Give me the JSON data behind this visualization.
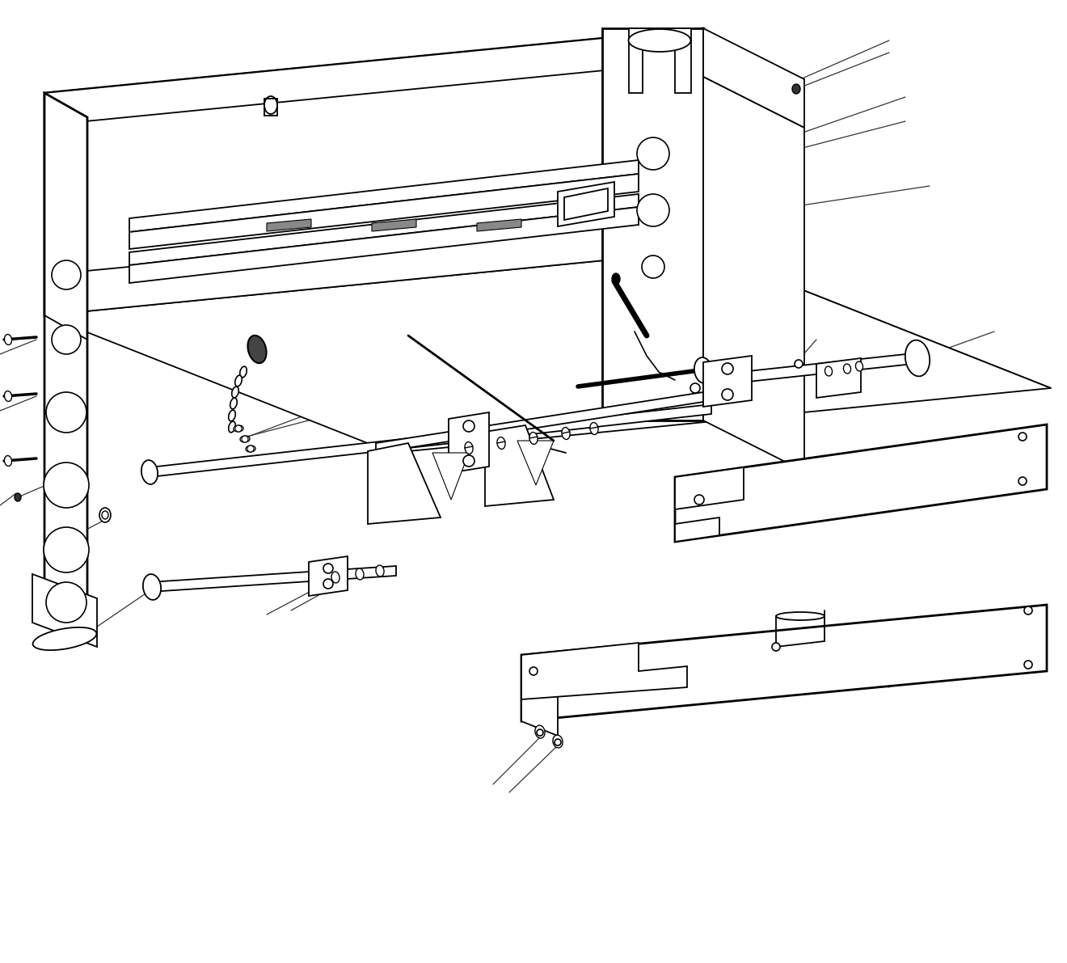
{
  "background_color": "#ffffff",
  "lc": "#000000",
  "lw": 1.3,
  "tlw": 2.0,
  "fw": 13.2,
  "fh": 11.91,
  "dpi": 100
}
